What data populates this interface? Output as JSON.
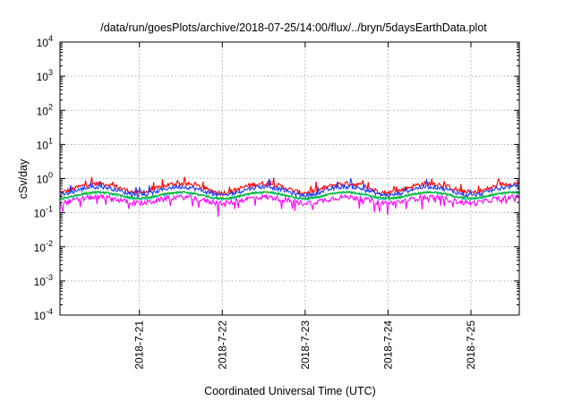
{
  "chart_data": {
    "type": "line",
    "title": "/data/run/goesPlots/archive/2018-07-25/14:00/flux/../bryn/5daysEarthData.plot",
    "xlabel": "Coordinated Universal Time (UTC)",
    "ylabel": "cSv/day",
    "y_scale": "log",
    "ylim": [
      0.0001,
      10000
    ],
    "y_ticks": [
      {
        "base": "10",
        "exp": "-4"
      },
      {
        "base": "10",
        "exp": "-3"
      },
      {
        "base": "10",
        "exp": "-2"
      },
      {
        "base": "10",
        "exp": "-1"
      },
      {
        "base": "10",
        "exp": "0"
      },
      {
        "base": "10",
        "exp": "1"
      },
      {
        "base": "10",
        "exp": "2"
      },
      {
        "base": "10",
        "exp": "3"
      },
      {
        "base": "10",
        "exp": "4"
      }
    ],
    "x_range": [
      "2018-07-20T01:00",
      "2018-07-25T14:00"
    ],
    "x_ticks": [
      {
        "label": "2018-7-21",
        "at": "2018-07-21T00:00"
      },
      {
        "label": "2018-7-22",
        "at": "2018-07-22T00:00"
      },
      {
        "label": "2018-7-23",
        "at": "2018-07-23T00:00"
      },
      {
        "label": "2018-7-24",
        "at": "2018-07-24T00:00"
      },
      {
        "label": "2018-7-25",
        "at": "2018-07-25T00:00"
      }
    ],
    "grid": true,
    "legend": "none",
    "series": [
      {
        "color": "#ff0000",
        "median": 0.55,
        "spread": 0.32,
        "day_amp": 0.3
      },
      {
        "color": "#1a3fff",
        "median": 0.45,
        "spread": 0.28,
        "day_amp": 0.28
      },
      {
        "color": "#00c8c8",
        "median": 0.32,
        "spread": 0.18,
        "day_amp": 0.22
      },
      {
        "color": "#00b000",
        "median": 0.33,
        "spread": 0.12,
        "day_amp": 0.2
      },
      {
        "color": "#ff00ff",
        "median": 0.24,
        "spread": 0.35,
        "day_amp": 0.2
      }
    ]
  }
}
